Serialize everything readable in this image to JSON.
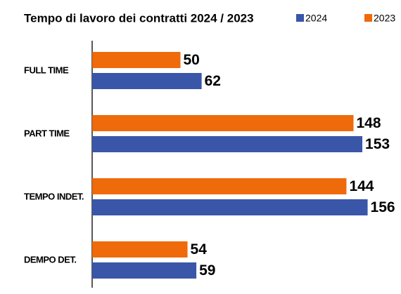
{
  "chart_data": {
    "type": "bar",
    "orientation": "horizontal",
    "title": "Tempo di lavoro dei contratti 2024 / 2023",
    "categories": [
      "FULL TIME",
      "PART TIME",
      "TEMPO INDET.",
      "DEMPO DET."
    ],
    "series": [
      {
        "name": "2024",
        "color": "#3a56a8",
        "values": [
          62,
          153,
          156,
          59
        ]
      },
      {
        "name": "2023",
        "color": "#ef6a0a",
        "values": [
          50,
          148,
          144,
          54
        ]
      }
    ]
  }
}
